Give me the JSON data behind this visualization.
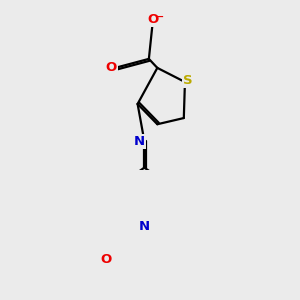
{
  "background_color": "#ebebeb",
  "bond_color": "#000000",
  "atom_colors": {
    "N": "#0000cc",
    "O": "#ee0000",
    "S": "#bbaa00",
    "C": "#000000"
  },
  "figsize": [
    3.0,
    3.0
  ],
  "dpi": 100
}
